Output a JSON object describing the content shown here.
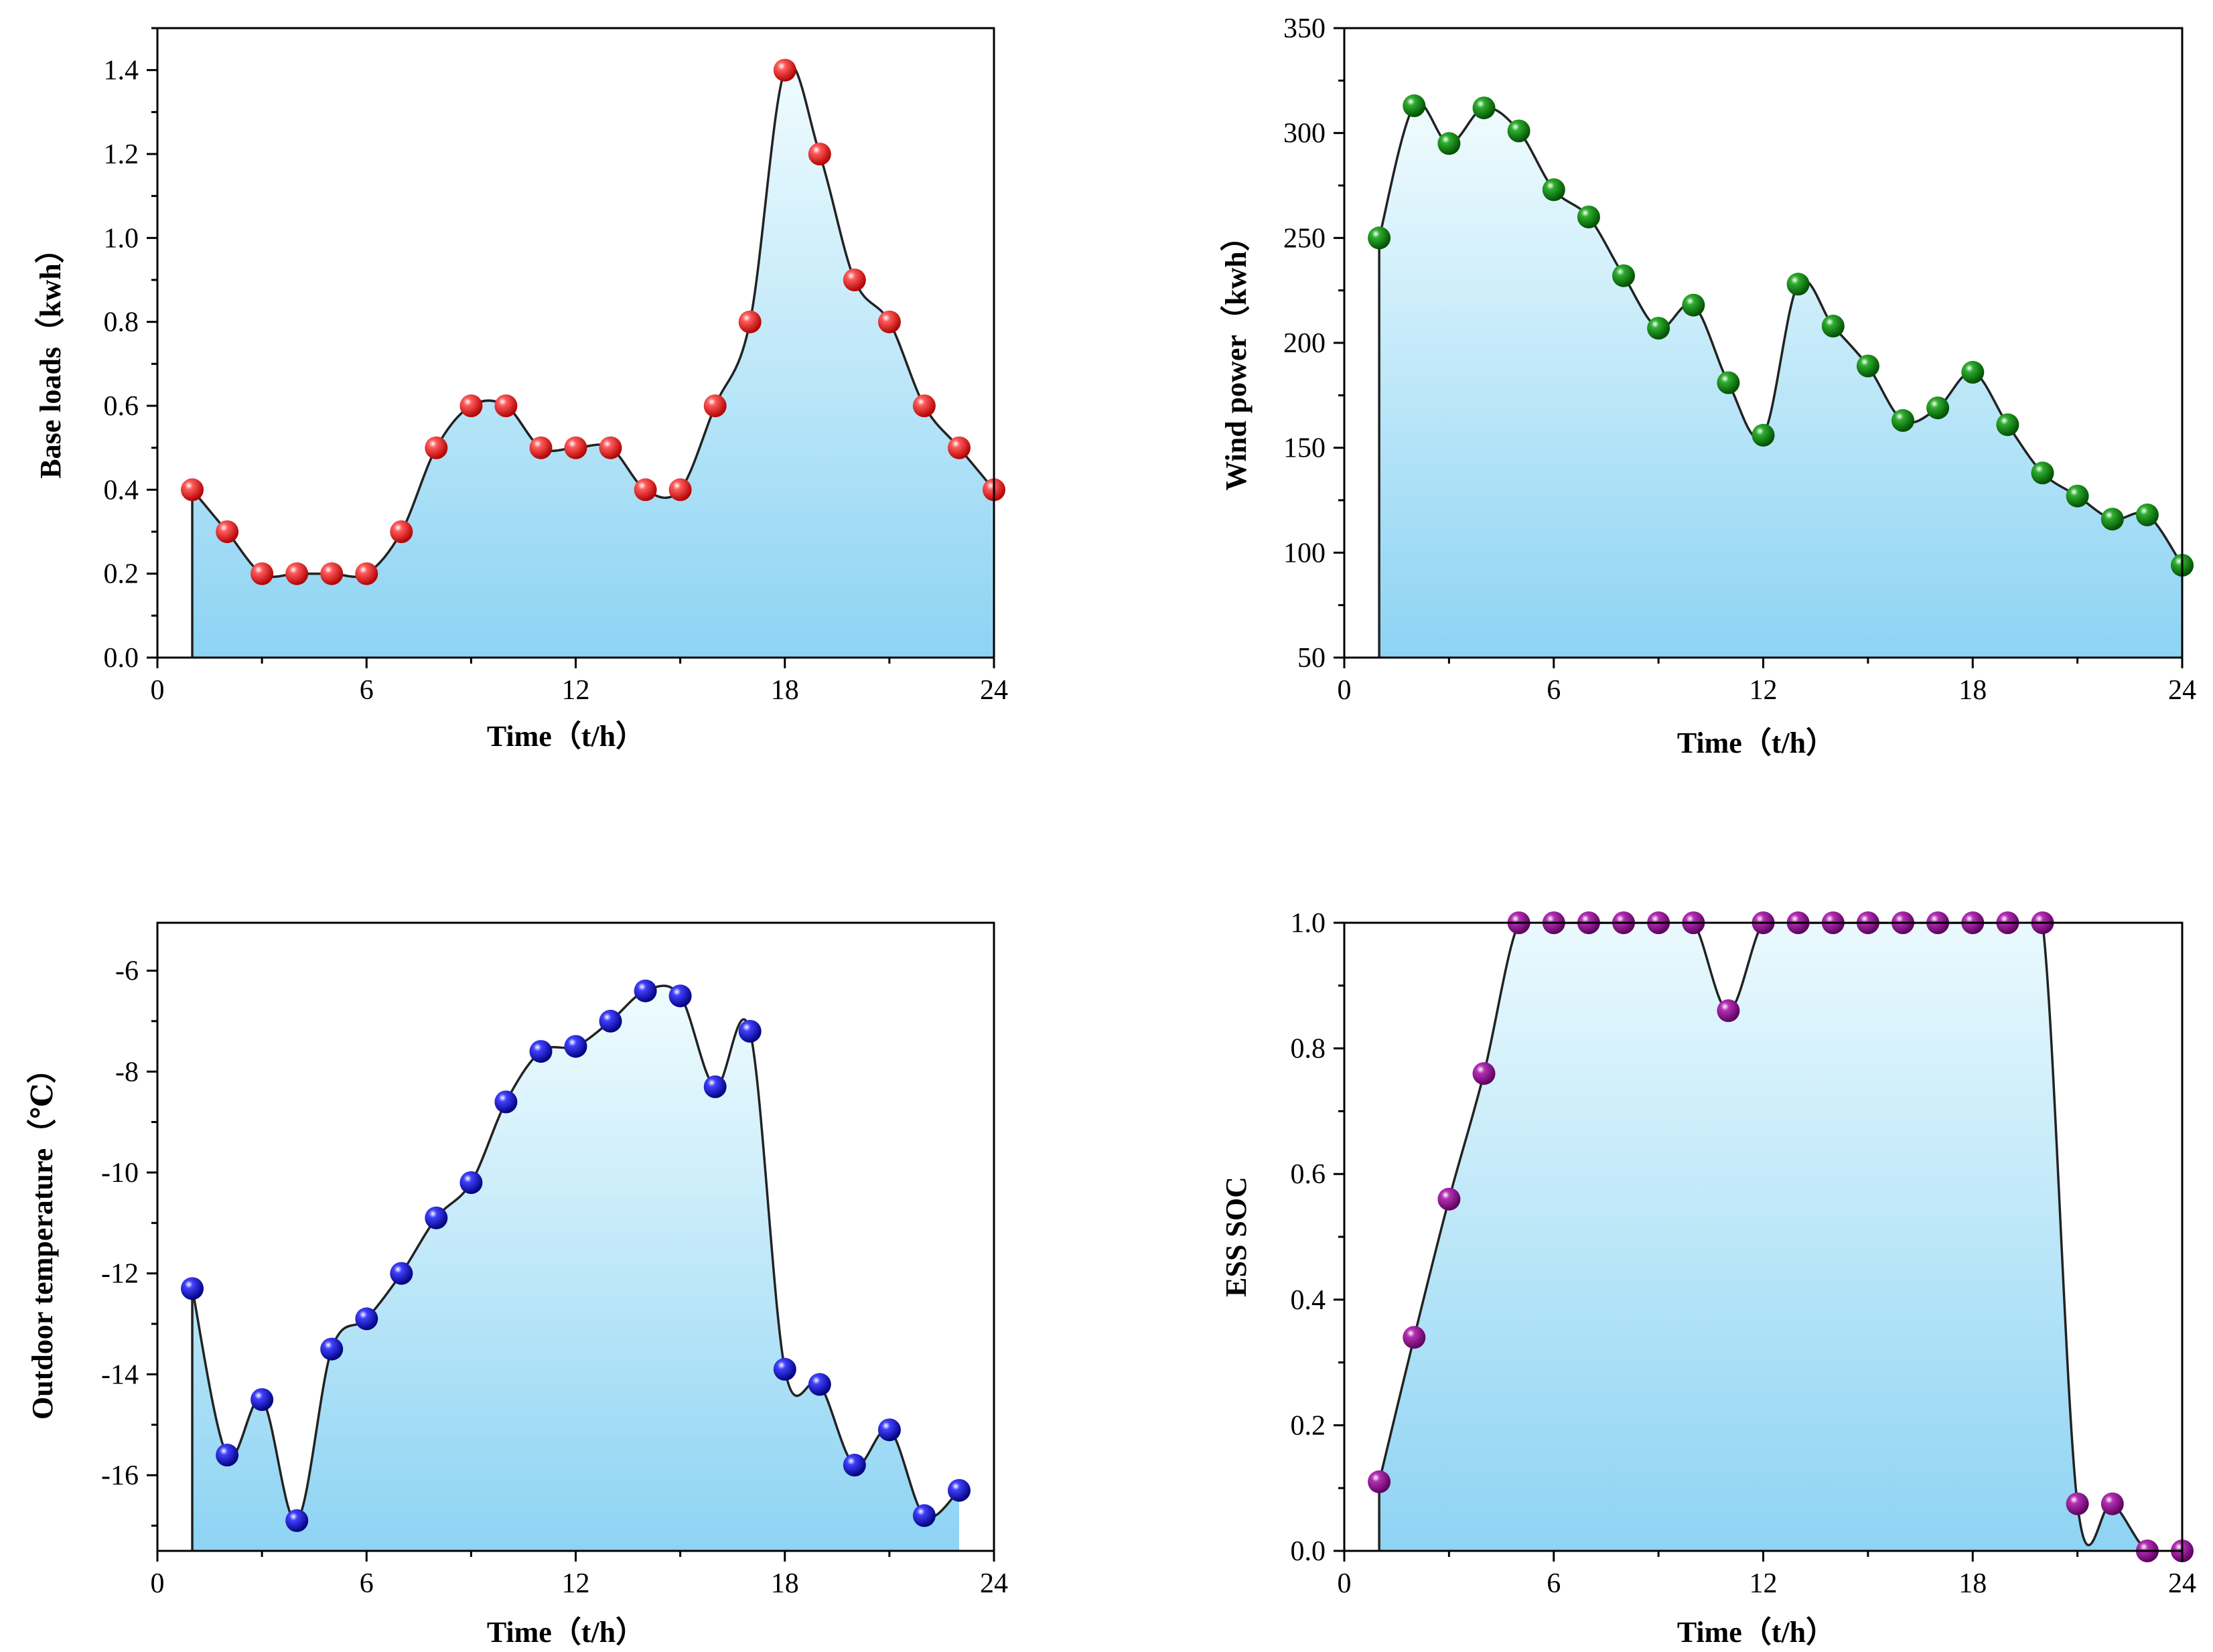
{
  "chart_data": [
    {
      "id": "base",
      "type": "area",
      "xlabel": "Time（t/h）",
      "ylabel": "Base loads（kwh）",
      "xlim": [
        0,
        24
      ],
      "ylim": [
        0,
        1.5
      ],
      "xticks": [
        "0",
        "6",
        "12",
        "18",
        "24"
      ],
      "xtick_values": [
        0,
        6,
        12,
        18,
        24
      ],
      "ytick_values": [
        0.0,
        0.2,
        0.4,
        0.6,
        0.8,
        1.0,
        1.2,
        1.4
      ],
      "ytick_labels": [
        "0.0",
        "0.2",
        "0.4",
        "0.6",
        "0.8",
        "1.0",
        "1.2",
        "1.4"
      ],
      "marker_color": "#ff0000",
      "x": [
        1,
        2,
        3,
        4,
        5,
        6,
        7,
        8,
        9,
        10,
        11,
        12,
        13,
        14,
        15,
        16,
        17,
        18,
        19,
        20,
        21,
        22,
        23,
        24
      ],
      "values": [
        0.4,
        0.3,
        0.2,
        0.2,
        0.2,
        0.2,
        0.3,
        0.5,
        0.6,
        0.6,
        0.5,
        0.5,
        0.5,
        0.4,
        0.4,
        0.6,
        0.8,
        1.4,
        1.2,
        0.9,
        0.8,
        0.6,
        0.5,
        0.4
      ]
    },
    {
      "id": "wind",
      "type": "area",
      "xlabel": "Time（t/h）",
      "ylabel": "Wind power（kwh）",
      "xlim": [
        0,
        24
      ],
      "ylim": [
        50,
        350
      ],
      "xticks": [
        "0",
        "6",
        "12",
        "18",
        "24"
      ],
      "xtick_values": [
        0,
        6,
        12,
        18,
        24
      ],
      "ytick_values": [
        50,
        100,
        150,
        200,
        250,
        300,
        350
      ],
      "ytick_labels": [
        "50",
        "100",
        "150",
        "200",
        "250",
        "300",
        "350"
      ],
      "marker_color": "#008800",
      "x": [
        1,
        2,
        3,
        4,
        5,
        6,
        7,
        8,
        9,
        10,
        11,
        12,
        13,
        14,
        15,
        16,
        17,
        18,
        19,
        20,
        21,
        22,
        23,
        24
      ],
      "values": [
        250,
        313,
        295,
        312,
        301,
        273,
        260,
        232,
        207,
        218,
        181,
        156,
        228,
        208,
        189,
        163,
        169,
        186,
        161,
        138,
        127,
        116,
        118,
        94
      ]
    },
    {
      "id": "temp",
      "type": "area",
      "xlabel": "Time（t/h）",
      "ylabel": "Outdoor temperature（℃）",
      "xlim": [
        0,
        24
      ],
      "ylim": [
        -17.5,
        -5.05
      ],
      "xticks": [
        "0",
        "6",
        "12",
        "18",
        "24"
      ],
      "xtick_values": [
        0,
        6,
        12,
        18,
        24
      ],
      "ytick_values": [
        -16,
        -14,
        -12,
        -10,
        -8,
        -6
      ],
      "ytick_labels": [
        "-16",
        "-14",
        "-12",
        "-10",
        "-8",
        "-6"
      ],
      "marker_color": "#0000ff",
      "x": [
        1,
        2,
        3,
        4,
        5,
        6,
        7,
        8,
        9,
        10,
        11,
        12,
        13,
        14,
        15,
        16,
        17,
        18,
        19,
        20,
        21,
        22,
        23
      ],
      "values": [
        -12.3,
        -15.6,
        -14.5,
        -16.9,
        -13.5,
        -12.9,
        -12.0,
        -10.9,
        -10.2,
        -8.6,
        -7.6,
        -7.5,
        -7.0,
        -6.4,
        -6.5,
        -8.3,
        -7.2,
        -13.9,
        -14.2,
        -15.8,
        -15.1,
        -16.8,
        -16.3
      ]
    },
    {
      "id": "soc",
      "type": "area",
      "xlabel": "Time（t/h）",
      "ylabel": "ESS SOC",
      "xlim": [
        0,
        24
      ],
      "ylim": [
        0,
        1.0
      ],
      "xticks": [
        "0",
        "6",
        "12",
        "18",
        "24"
      ],
      "xtick_values": [
        0,
        6,
        12,
        18,
        24
      ],
      "ytick_values": [
        0.0,
        0.2,
        0.4,
        0.6,
        0.8,
        1.0
      ],
      "ytick_labels": [
        "0.0",
        "0.2",
        "0.4",
        "0.6",
        "0.8",
        "1.0"
      ],
      "marker_color": "#990099",
      "x": [
        1,
        2,
        3,
        4,
        5,
        6,
        7,
        8,
        9,
        10,
        11,
        12,
        13,
        14,
        15,
        16,
        17,
        18,
        19,
        20,
        21,
        22,
        23,
        24
      ],
      "values": [
        0.11,
        0.34,
        0.56,
        0.76,
        1.0,
        1.0,
        1.0,
        1.0,
        1.0,
        1.0,
        0.86,
        1.0,
        1.0,
        1.0,
        1.0,
        1.0,
        1.0,
        1.0,
        1.0,
        1.0,
        0.075,
        0.075,
        0.0,
        0.0
      ]
    }
  ]
}
